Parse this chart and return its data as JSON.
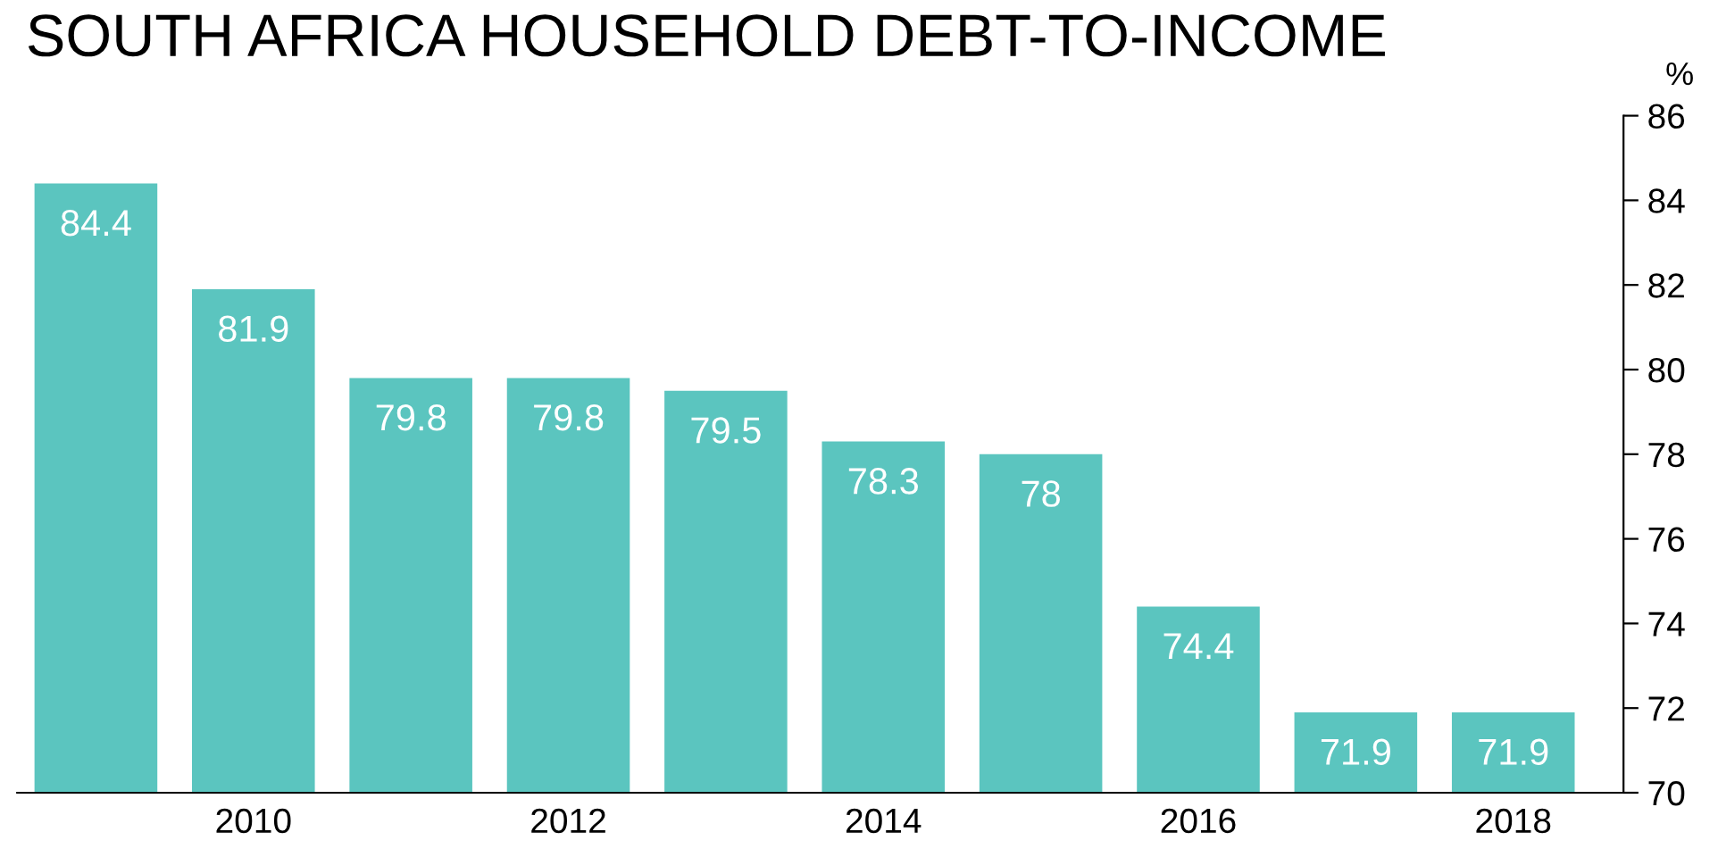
{
  "chart_data": {
    "type": "bar",
    "title": "SOUTH AFRICA HOUSEHOLD DEBT-TO-INCOME",
    "ylabel": "%",
    "categories": [
      null,
      "2010",
      null,
      "2012",
      null,
      "2014",
      null,
      "2016",
      null,
      "2018"
    ],
    "values": [
      84.4,
      81.9,
      79.8,
      79.8,
      79.5,
      78.3,
      78,
      74.4,
      71.9,
      71.9
    ],
    "color": "#5bc5bf",
    "ylim": [
      70,
      86
    ],
    "yticks": [
      70,
      72,
      74,
      76,
      78,
      80,
      82,
      84,
      86
    ],
    "data_labels": true,
    "grid": false,
    "legend": false
  }
}
